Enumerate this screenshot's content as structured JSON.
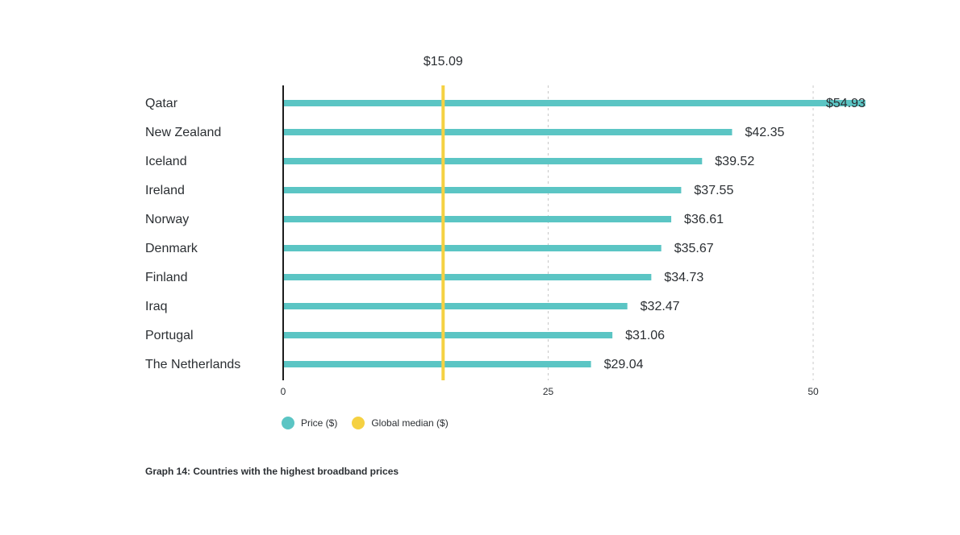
{
  "chart_data": {
    "type": "bar",
    "orientation": "horizontal",
    "categories": [
      "Qatar",
      "New Zealand",
      "Iceland",
      "Ireland",
      "Norway",
      "Denmark",
      "Finland",
      "Iraq",
      "Portugal",
      "The Netherlands"
    ],
    "series": [
      {
        "name": "Price ($)",
        "color": "#5bc5c4",
        "values": [
          54.93,
          42.35,
          39.52,
          37.55,
          36.61,
          35.67,
          34.73,
          32.47,
          31.06,
          29.04
        ],
        "labels": [
          "$54.93",
          "$42.35",
          "$39.52",
          "$37.55",
          "$36.61",
          "$35.67",
          "$34.73",
          "$32.47",
          "$31.06",
          "$29.04"
        ]
      }
    ],
    "reference_line": {
      "name": "Global median ($)",
      "value": 15.09,
      "label": "$15.09",
      "color": "#f5d142"
    },
    "xlim": [
      0,
      50
    ],
    "xticks": [
      0,
      25,
      50
    ],
    "xtick_labels": [
      "0",
      "25",
      "50"
    ],
    "grid": "vertical dashed at 25 and 50",
    "legend_position": "bottom-left",
    "xlabel": "",
    "ylabel": "",
    "title": "",
    "caption": "Graph 14: Countries with the highest broadband prices"
  },
  "legend": {
    "price_label": "Price ($)",
    "median_label": "Global median ($)"
  }
}
